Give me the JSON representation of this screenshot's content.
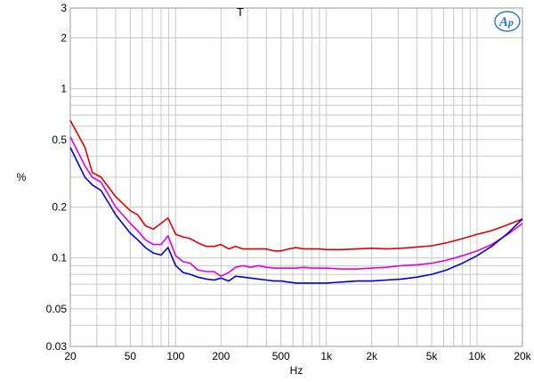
{
  "chart_data": {
    "type": "line",
    "title": "T",
    "xlabel": "Hz",
    "ylabel": "%",
    "x_scale": "log",
    "y_scale": "log",
    "xlim": [
      20,
      20000
    ],
    "ylim": [
      0.03,
      3
    ],
    "grid": true,
    "legend": "none",
    "x_ticks": [
      {
        "value": 20,
        "label": "20"
      },
      {
        "value": 50,
        "label": "50"
      },
      {
        "value": 100,
        "label": "100"
      },
      {
        "value": 200,
        "label": "200"
      },
      {
        "value": 500,
        "label": "500"
      },
      {
        "value": 1000,
        "label": "1k"
      },
      {
        "value": 2000,
        "label": "2k"
      },
      {
        "value": 5000,
        "label": "5k"
      },
      {
        "value": 10000,
        "label": "10k"
      },
      {
        "value": 20000,
        "label": "20k"
      }
    ],
    "y_ticks": [
      {
        "value": 3,
        "label": "3"
      },
      {
        "value": 2,
        "label": "2"
      },
      {
        "value": 1,
        "label": "1"
      },
      {
        "value": 0.5,
        "label": "0.5"
      },
      {
        "value": 0.2,
        "label": "0.2"
      },
      {
        "value": 0.1,
        "label": "0.1"
      },
      {
        "value": 0.05,
        "label": "0.05"
      },
      {
        "value": 0.03,
        "label": "0.03"
      }
    ],
    "series": [
      {
        "color": "#e00000",
        "points": [
          [
            20,
            0.65
          ],
          [
            25,
            0.45
          ],
          [
            28,
            0.32
          ],
          [
            32,
            0.3
          ],
          [
            40,
            0.23
          ],
          [
            50,
            0.19
          ],
          [
            56,
            0.18
          ],
          [
            63,
            0.155
          ],
          [
            71,
            0.148
          ],
          [
            80,
            0.16
          ],
          [
            89,
            0.172
          ],
          [
            100,
            0.138
          ],
          [
            112,
            0.133
          ],
          [
            125,
            0.13
          ],
          [
            140,
            0.123
          ],
          [
            160,
            0.117
          ],
          [
            180,
            0.117
          ],
          [
            200,
            0.12
          ],
          [
            225,
            0.113
          ],
          [
            250,
            0.117
          ],
          [
            280,
            0.113
          ],
          [
            315,
            0.113
          ],
          [
            355,
            0.113
          ],
          [
            400,
            0.113
          ],
          [
            450,
            0.11
          ],
          [
            500,
            0.11
          ],
          [
            560,
            0.113
          ],
          [
            630,
            0.115
          ],
          [
            710,
            0.113
          ],
          [
            800,
            0.113
          ],
          [
            900,
            0.113
          ],
          [
            1000,
            0.112
          ],
          [
            1250,
            0.112
          ],
          [
            1600,
            0.113
          ],
          [
            2000,
            0.114
          ],
          [
            2500,
            0.113
          ],
          [
            3150,
            0.114
          ],
          [
            4000,
            0.116
          ],
          [
            5000,
            0.118
          ],
          [
            6300,
            0.123
          ],
          [
            8000,
            0.13
          ],
          [
            10000,
            0.138
          ],
          [
            12500,
            0.145
          ],
          [
            16000,
            0.157
          ],
          [
            20000,
            0.17
          ]
        ]
      },
      {
        "color": "#e000e0",
        "points": [
          [
            20,
            0.52
          ],
          [
            25,
            0.35
          ],
          [
            28,
            0.3
          ],
          [
            32,
            0.28
          ],
          [
            40,
            0.2
          ],
          [
            50,
            0.16
          ],
          [
            56,
            0.145
          ],
          [
            63,
            0.128
          ],
          [
            71,
            0.12
          ],
          [
            80,
            0.12
          ],
          [
            89,
            0.135
          ],
          [
            100,
            0.103
          ],
          [
            112,
            0.095
          ],
          [
            125,
            0.093
          ],
          [
            140,
            0.085
          ],
          [
            160,
            0.083
          ],
          [
            180,
            0.083
          ],
          [
            200,
            0.078
          ],
          [
            225,
            0.082
          ],
          [
            250,
            0.088
          ],
          [
            280,
            0.09
          ],
          [
            315,
            0.088
          ],
          [
            355,
            0.09
          ],
          [
            400,
            0.088
          ],
          [
            450,
            0.087
          ],
          [
            500,
            0.087
          ],
          [
            560,
            0.087
          ],
          [
            630,
            0.087
          ],
          [
            710,
            0.088
          ],
          [
            800,
            0.087
          ],
          [
            900,
            0.087
          ],
          [
            1000,
            0.087
          ],
          [
            1250,
            0.086
          ],
          [
            1600,
            0.086
          ],
          [
            2000,
            0.087
          ],
          [
            2500,
            0.088
          ],
          [
            3150,
            0.09
          ],
          [
            4000,
            0.091
          ],
          [
            5000,
            0.093
          ],
          [
            6300,
            0.097
          ],
          [
            8000,
            0.103
          ],
          [
            10000,
            0.11
          ],
          [
            12500,
            0.12
          ],
          [
            16000,
            0.138
          ],
          [
            20000,
            0.16
          ]
        ]
      },
      {
        "color": "#0000d0",
        "points": [
          [
            20,
            0.45
          ],
          [
            25,
            0.3
          ],
          [
            28,
            0.27
          ],
          [
            32,
            0.25
          ],
          [
            40,
            0.18
          ],
          [
            50,
            0.14
          ],
          [
            56,
            0.128
          ],
          [
            63,
            0.115
          ],
          [
            71,
            0.107
          ],
          [
            80,
            0.104
          ],
          [
            89,
            0.115
          ],
          [
            100,
            0.09
          ],
          [
            112,
            0.082
          ],
          [
            125,
            0.08
          ],
          [
            140,
            0.077
          ],
          [
            160,
            0.075
          ],
          [
            180,
            0.074
          ],
          [
            200,
            0.076
          ],
          [
            225,
            0.073
          ],
          [
            250,
            0.078
          ],
          [
            280,
            0.077
          ],
          [
            315,
            0.076
          ],
          [
            355,
            0.075
          ],
          [
            400,
            0.074
          ],
          [
            450,
            0.073
          ],
          [
            500,
            0.073
          ],
          [
            560,
            0.072
          ],
          [
            630,
            0.071
          ],
          [
            710,
            0.071
          ],
          [
            800,
            0.071
          ],
          [
            900,
            0.071
          ],
          [
            1000,
            0.071
          ],
          [
            1250,
            0.072
          ],
          [
            1600,
            0.073
          ],
          [
            2000,
            0.073
          ],
          [
            2500,
            0.074
          ],
          [
            3150,
            0.075
          ],
          [
            4000,
            0.077
          ],
          [
            5000,
            0.08
          ],
          [
            6300,
            0.085
          ],
          [
            8000,
            0.093
          ],
          [
            10000,
            0.103
          ],
          [
            12500,
            0.117
          ],
          [
            16000,
            0.14
          ],
          [
            20000,
            0.17
          ]
        ]
      }
    ]
  },
  "logo": {
    "text": "AP",
    "color": "#2a73c8"
  }
}
